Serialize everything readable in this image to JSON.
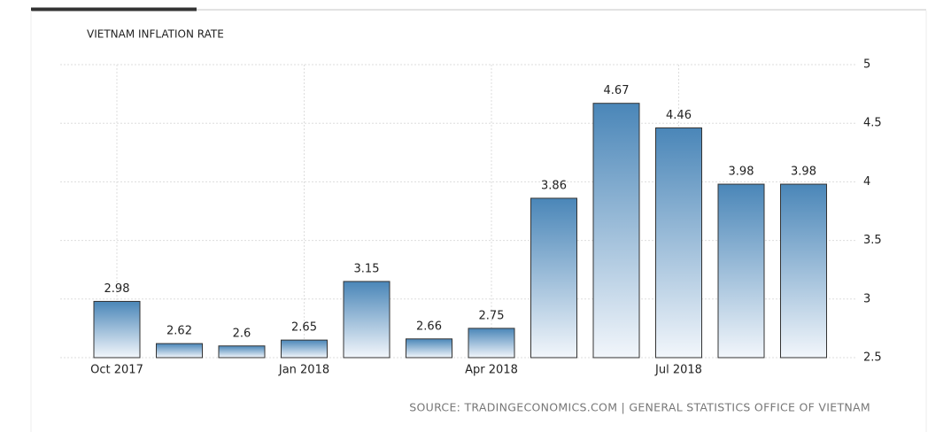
{
  "chart_data": {
    "type": "bar",
    "title": "VIETNAM INFLATION RATE",
    "categories": [
      "Oct 2017",
      null,
      null,
      "Jan 2018",
      null,
      null,
      "Apr 2018",
      null,
      null,
      "Jul 2018",
      null,
      null
    ],
    "values": [
      2.98,
      2.62,
      2.6,
      2.65,
      3.15,
      2.66,
      2.75,
      3.86,
      4.67,
      4.46,
      3.98,
      3.98
    ],
    "color": "#4a86b8",
    "ylim": [
      2.5,
      5
    ],
    "yticks": [
      2.5,
      3,
      3.5,
      4,
      4.5,
      5
    ],
    "grid": true,
    "source": "SOURCE: TRADINGECONOMICS.COM | GENERAL STATISTICS OFFICE OF VIETNAM"
  }
}
